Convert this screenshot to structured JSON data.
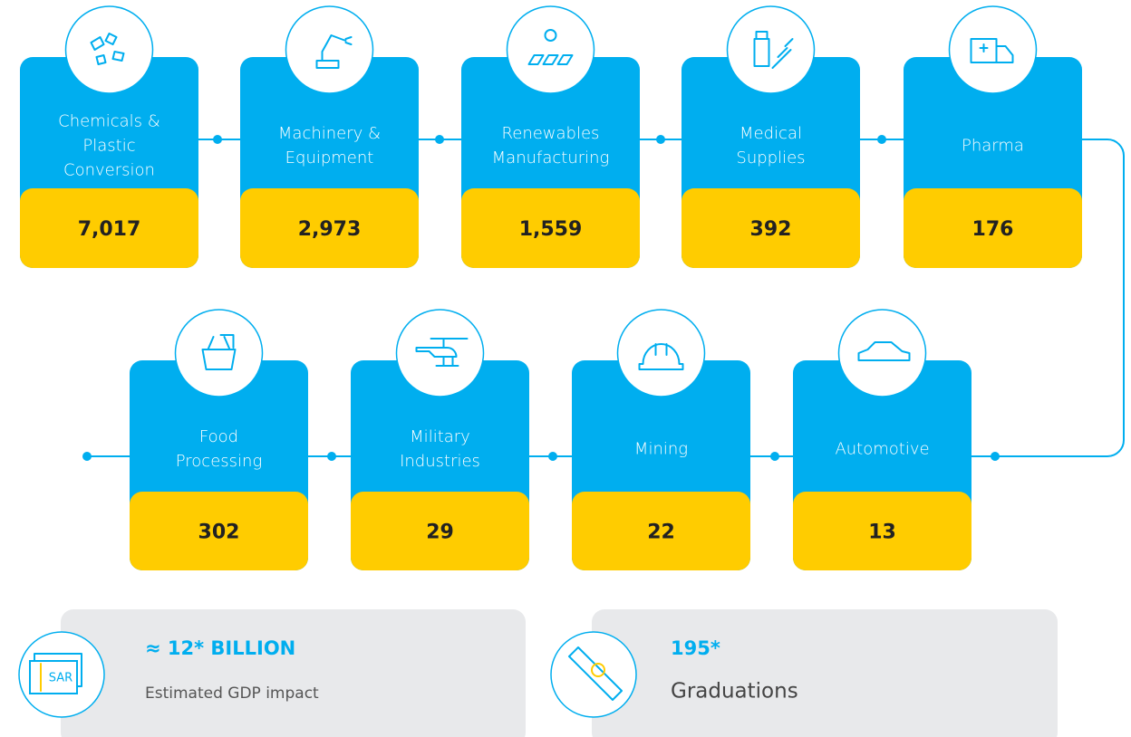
{
  "sectors": [
    {
      "label": [
        "Chemicals &",
        "Plastic",
        "Conversion"
      ],
      "value": "7,017"
    },
    {
      "label": [
        "Machinery &",
        "Equipment"
      ],
      "value": "2,973"
    },
    {
      "label": [
        "Renewables",
        "Manufacturing"
      ],
      "value": "1,559"
    },
    {
      "label": [
        "Medical",
        "Supplies"
      ],
      "value": "392"
    },
    {
      "label": [
        "Pharma"
      ],
      "value": "176"
    },
    {
      "label": [
        "Food",
        "Processing"
      ],
      "value": "302"
    },
    {
      "label": [
        "Military",
        "Industries"
      ],
      "value": "29"
    },
    {
      "label": [
        "Mining"
      ],
      "value": "22"
    },
    {
      "label": [
        "Automotive"
      ],
      "value": "13"
    }
  ],
  "summary": [
    {
      "headline": "≈ 12* BILLION",
      "caption": "Estimated GDP impact",
      "icon_text": "SAR"
    },
    {
      "headline": "195*",
      "caption": "Graduations"
    }
  ]
}
